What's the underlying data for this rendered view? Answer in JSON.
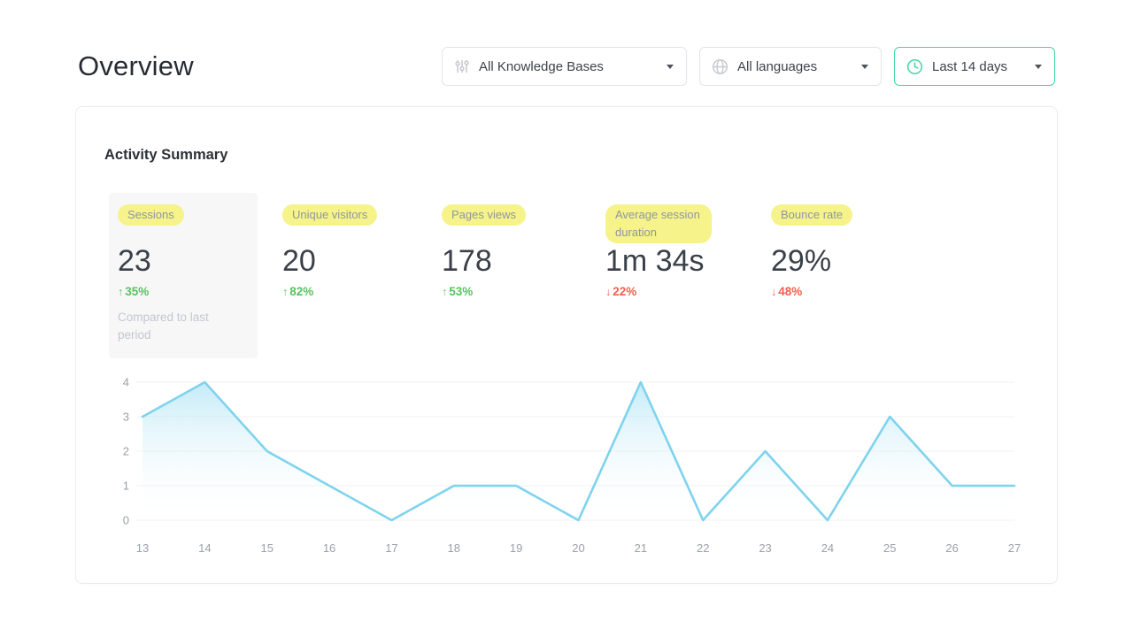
{
  "page": {
    "title": "Overview"
  },
  "filters": {
    "knowledge_bases": {
      "label": "All Knowledge Bases",
      "icon": "sliders-icon"
    },
    "languages": {
      "label": "All languages",
      "icon": "globe-icon"
    },
    "date_range": {
      "label": "Last 14 days",
      "icon": "clock-icon"
    }
  },
  "card": {
    "title": "Activity Summary"
  },
  "metrics": [
    {
      "label": "Sessions",
      "value": "23",
      "arrow": "↑",
      "change": "35%",
      "direction": "up",
      "note": "Compared to last period",
      "selected": true
    },
    {
      "label": "Unique visitors",
      "value": "20",
      "arrow": "↑",
      "change": "82%",
      "direction": "up"
    },
    {
      "label": "Pages views",
      "value": "178",
      "arrow": "↑",
      "change": "53%",
      "direction": "up"
    },
    {
      "label": "Average session duration",
      "value": "1m 34s",
      "arrow": "↓",
      "change": "22%",
      "direction": "down"
    },
    {
      "label": "Bounce rate",
      "value": "29%",
      "arrow": "↓",
      "change": "48%",
      "direction": "down"
    }
  ],
  "colors": {
    "accent_green": "#3fd6a4",
    "positive": "#57c35f",
    "negative": "#f4604e",
    "highlight_yellow": "#f6f38b",
    "chart_line": "#7ed3ee",
    "chart_fill": "#aee3f4",
    "gridline": "#f0f1f2",
    "axis_label": "#9aa1a9"
  },
  "chart_data": {
    "type": "area",
    "x": [
      13,
      14,
      15,
      16,
      17,
      18,
      19,
      20,
      21,
      22,
      23,
      24,
      25,
      26,
      27
    ],
    "values": [
      3,
      4,
      2,
      1,
      0,
      1,
      1,
      0,
      4,
      0,
      2,
      0,
      3,
      1,
      1
    ],
    "title": "",
    "xlabel": "",
    "ylabel": "",
    "ylim": [
      0,
      4
    ],
    "yticks": [
      0,
      1,
      2,
      3,
      4
    ],
    "grid": true,
    "legend": "none",
    "line_color": "#7ed3ee",
    "fill_color": "#aee3f4"
  }
}
